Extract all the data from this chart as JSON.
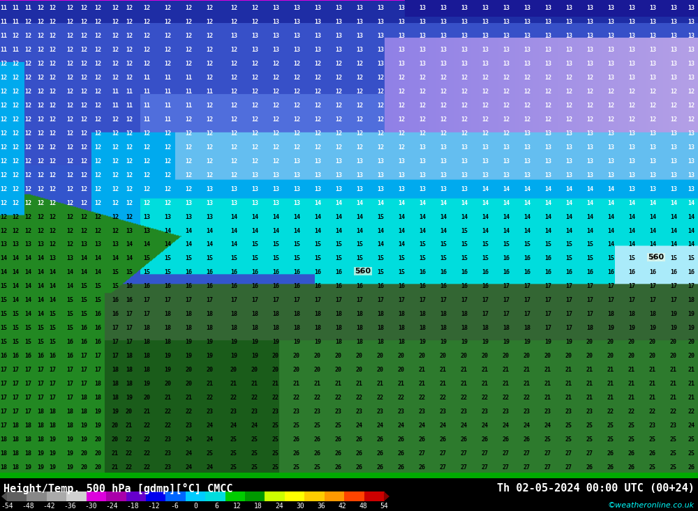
{
  "title_left": "Height/Temp. 500 hPa [gdmp][°C] CMCC",
  "title_right": "Th 02-05-2024 00:00 UTC (00+24)",
  "credit": "©weatheronline.co.uk",
  "colorbar_labels": [
    "-54",
    "-48",
    "-42",
    "-36",
    "-30",
    "-24",
    "-18",
    "-12",
    "-6",
    "0",
    "6",
    "12",
    "18",
    "24",
    "30",
    "36",
    "42",
    "48",
    "54"
  ],
  "colorbar_colors": [
    "#606060",
    "#888888",
    "#aaaaaa",
    "#d0d0d0",
    "#dd00dd",
    "#aa00aa",
    "#6600cc",
    "#0000ee",
    "#0066ff",
    "#00ccff",
    "#00dddd",
    "#00cc00",
    "#009900",
    "#ccff00",
    "#ffff00",
    "#ffcc00",
    "#ff9900",
    "#ff4400",
    "#cc0000"
  ],
  "map_colors": {
    "deep_blue": "#2233bb",
    "mid_blue": "#3355cc",
    "light_blue1": "#4499ee",
    "cyan1": "#00aaee",
    "cyan2": "#00ccee",
    "cyan3": "#00dddd",
    "light_cyan": "#55ddff",
    "pale_cyan": "#aaeeff",
    "green1": "#228822",
    "green2": "#336633",
    "green3": "#2d7a2d",
    "dark_green": "#1a5c1a"
  },
  "fig_width": 10.0,
  "fig_height": 7.33,
  "dpi": 100
}
